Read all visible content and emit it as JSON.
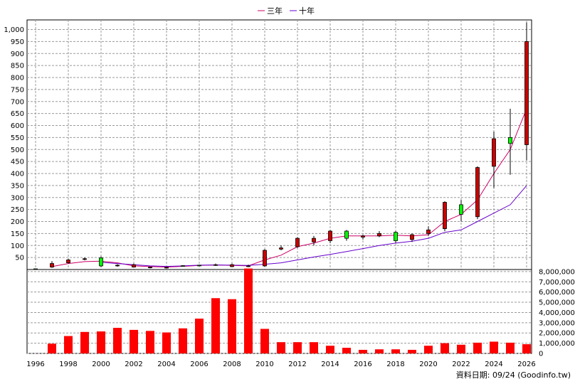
{
  "chart_data": {
    "type": "candlestick+bar",
    "legend": {
      "position": "top-center",
      "items": [
        {
          "name": "三年",
          "color": "#cc0066"
        },
        {
          "name": "十年",
          "color": "#6600cc"
        }
      ]
    },
    "x_ticks": [
      "1996",
      "1998",
      "2000",
      "2002",
      "2004",
      "2006",
      "2008",
      "2010",
      "2012",
      "2014",
      "2016",
      "2018",
      "2020",
      "2022",
      "2024",
      "2026"
    ],
    "price_axis": {
      "range": [
        0,
        1040
      ],
      "ticks": [
        50,
        100,
        150,
        200,
        250,
        300,
        350,
        400,
        450,
        500,
        550,
        600,
        650,
        700,
        750,
        800,
        850,
        900,
        950,
        1000
      ],
      "tick_labels": [
        "50",
        "100",
        "150",
        "200",
        "250",
        "300",
        "350",
        "400",
        "450",
        "500",
        "550",
        "600",
        "650",
        "700",
        "750",
        "800",
        "850",
        "900",
        "950",
        "1,000"
      ],
      "grid": true
    },
    "volume_axis": {
      "range": [
        0,
        8200000
      ],
      "ticks": [
        0,
        1000000,
        2000000,
        3000000,
        4000000,
        5000000,
        6000000,
        7000000,
        8000000
      ],
      "tick_labels": [
        "0",
        "1,000,000",
        "2,000,000",
        "3,000,000",
        "4,000,000",
        "5,000,000",
        "6,000,000",
        "7,000,000",
        "8,000,000"
      ],
      "grid": true
    },
    "candles": [
      {
        "year": 1996,
        "open": 3,
        "high": 3,
        "low": 3,
        "close": 3
      },
      {
        "year": 1997,
        "open": 25,
        "high": 35,
        "low": 7,
        "close": 10
      },
      {
        "year": 1998,
        "open": 40,
        "high": 45,
        "low": 25,
        "close": 28
      },
      {
        "year": 1999,
        "open": 45,
        "high": 50,
        "low": 38,
        "close": 42
      },
      {
        "year": 2000,
        "open": 15,
        "high": 55,
        "low": 10,
        "close": 48
      },
      {
        "year": 2001,
        "open": 18,
        "high": 22,
        "low": 12,
        "close": 15
      },
      {
        "year": 2002,
        "open": 20,
        "high": 25,
        "low": 8,
        "close": 10
      },
      {
        "year": 2003,
        "open": 10,
        "high": 12,
        "low": 5,
        "close": 8
      },
      {
        "year": 2004,
        "open": 9,
        "high": 12,
        "low": 5,
        "close": 7
      },
      {
        "year": 2005,
        "open": 15,
        "high": 18,
        "low": 12,
        "close": 16
      },
      {
        "year": 2006,
        "open": 18,
        "high": 20,
        "low": 15,
        "close": 18
      },
      {
        "year": 2007,
        "open": 20,
        "high": 25,
        "low": 15,
        "close": 18
      },
      {
        "year": 2008,
        "open": 20,
        "high": 25,
        "low": 10,
        "close": 12
      },
      {
        "year": 2009,
        "open": 15,
        "high": 20,
        "low": 10,
        "close": 12
      },
      {
        "year": 2010,
        "open": 80,
        "high": 85,
        "low": 12,
        "close": 15
      },
      {
        "year": 2011,
        "open": 90,
        "high": 100,
        "low": 80,
        "close": 85
      },
      {
        "year": 2012,
        "open": 130,
        "high": 135,
        "low": 90,
        "close": 95
      },
      {
        "year": 2013,
        "open": 130,
        "high": 140,
        "low": 100,
        "close": 115
      },
      {
        "year": 2014,
        "open": 160,
        "high": 165,
        "low": 110,
        "close": 120
      },
      {
        "year": 2015,
        "open": 130,
        "high": 165,
        "low": 120,
        "close": 160
      },
      {
        "year": 2016,
        "open": 140,
        "high": 145,
        "low": 125,
        "close": 135
      },
      {
        "year": 2017,
        "open": 150,
        "high": 160,
        "low": 135,
        "close": 140
      },
      {
        "year": 2018,
        "open": 120,
        "high": 160,
        "low": 110,
        "close": 155
      },
      {
        "year": 2019,
        "open": 145,
        "high": 150,
        "low": 115,
        "close": 125
      },
      {
        "year": 2020,
        "open": 165,
        "high": 180,
        "low": 140,
        "close": 150
      },
      {
        "year": 2021,
        "open": 280,
        "high": 285,
        "low": 160,
        "close": 170
      },
      {
        "year": 2022,
        "open": 230,
        "high": 290,
        "low": 200,
        "close": 270
      },
      {
        "year": 2023,
        "open": 425,
        "high": 430,
        "low": 210,
        "close": 220
      },
      {
        "year": 2024,
        "open": 545,
        "high": 575,
        "low": 340,
        "close": 430
      },
      {
        "year": 2025,
        "open": 525,
        "high": 670,
        "low": 395,
        "close": 550
      },
      {
        "year": 2026,
        "open": 950,
        "high": 1030,
        "low": 455,
        "close": 520
      }
    ],
    "series": [
      {
        "name": "三年",
        "color": "#cc0066",
        "x": [
          1997,
          1998,
          1999,
          2000,
          2001,
          2002,
          2003,
          2004,
          2005,
          2006,
          2007,
          2008,
          2009,
          2010,
          2011,
          2012,
          2013,
          2014,
          2015,
          2016,
          2017,
          2018,
          2019,
          2020,
          2021,
          2022,
          2023,
          2024,
          2025,
          2026
        ],
        "values": [
          12,
          25,
          33,
          35,
          28,
          15,
          12,
          10,
          13,
          17,
          19,
          17,
          15,
          40,
          60,
          95,
          110,
          130,
          140,
          140,
          140,
          143,
          140,
          145,
          200,
          230,
          290,
          400,
          500,
          670
        ]
      },
      {
        "name": "十年",
        "color": "#6600cc",
        "x": [
          2000,
          2001,
          2002,
          2003,
          2004,
          2005,
          2006,
          2007,
          2008,
          2009,
          2010,
          2011,
          2012,
          2013,
          2014,
          2015,
          2016,
          2017,
          2018,
          2019,
          2020,
          2021,
          2022,
          2023,
          2024,
          2025,
          2026
        ],
        "values": [
          30,
          25,
          20,
          15,
          13,
          15,
          18,
          19,
          18,
          17,
          22,
          28,
          40,
          52,
          63,
          75,
          87,
          100,
          110,
          118,
          130,
          155,
          165,
          200,
          235,
          270,
          350
        ]
      }
    ],
    "volume": {
      "x": [
        1997,
        1998,
        1999,
        2000,
        2001,
        2002,
        2003,
        2004,
        2005,
        2006,
        2007,
        2008,
        2009,
        2010,
        2011,
        2012,
        2013,
        2014,
        2015,
        2016,
        2017,
        2018,
        2019,
        2020,
        2021,
        2022,
        2023,
        2024,
        2025,
        2026
      ],
      "values": [
        950000,
        1700000,
        2100000,
        2150000,
        2500000,
        2300000,
        2200000,
        2050000,
        2450000,
        3400000,
        5400000,
        5300000,
        8300000,
        2400000,
        1100000,
        1100000,
        1100000,
        750000,
        550000,
        350000,
        400000,
        400000,
        350000,
        750000,
        1000000,
        850000,
        1050000,
        1150000,
        1050000,
        900000
      ],
      "color": "#ff0000"
    },
    "source_note": "資料日期: 09/24 (Goodinfo.tw)"
  }
}
